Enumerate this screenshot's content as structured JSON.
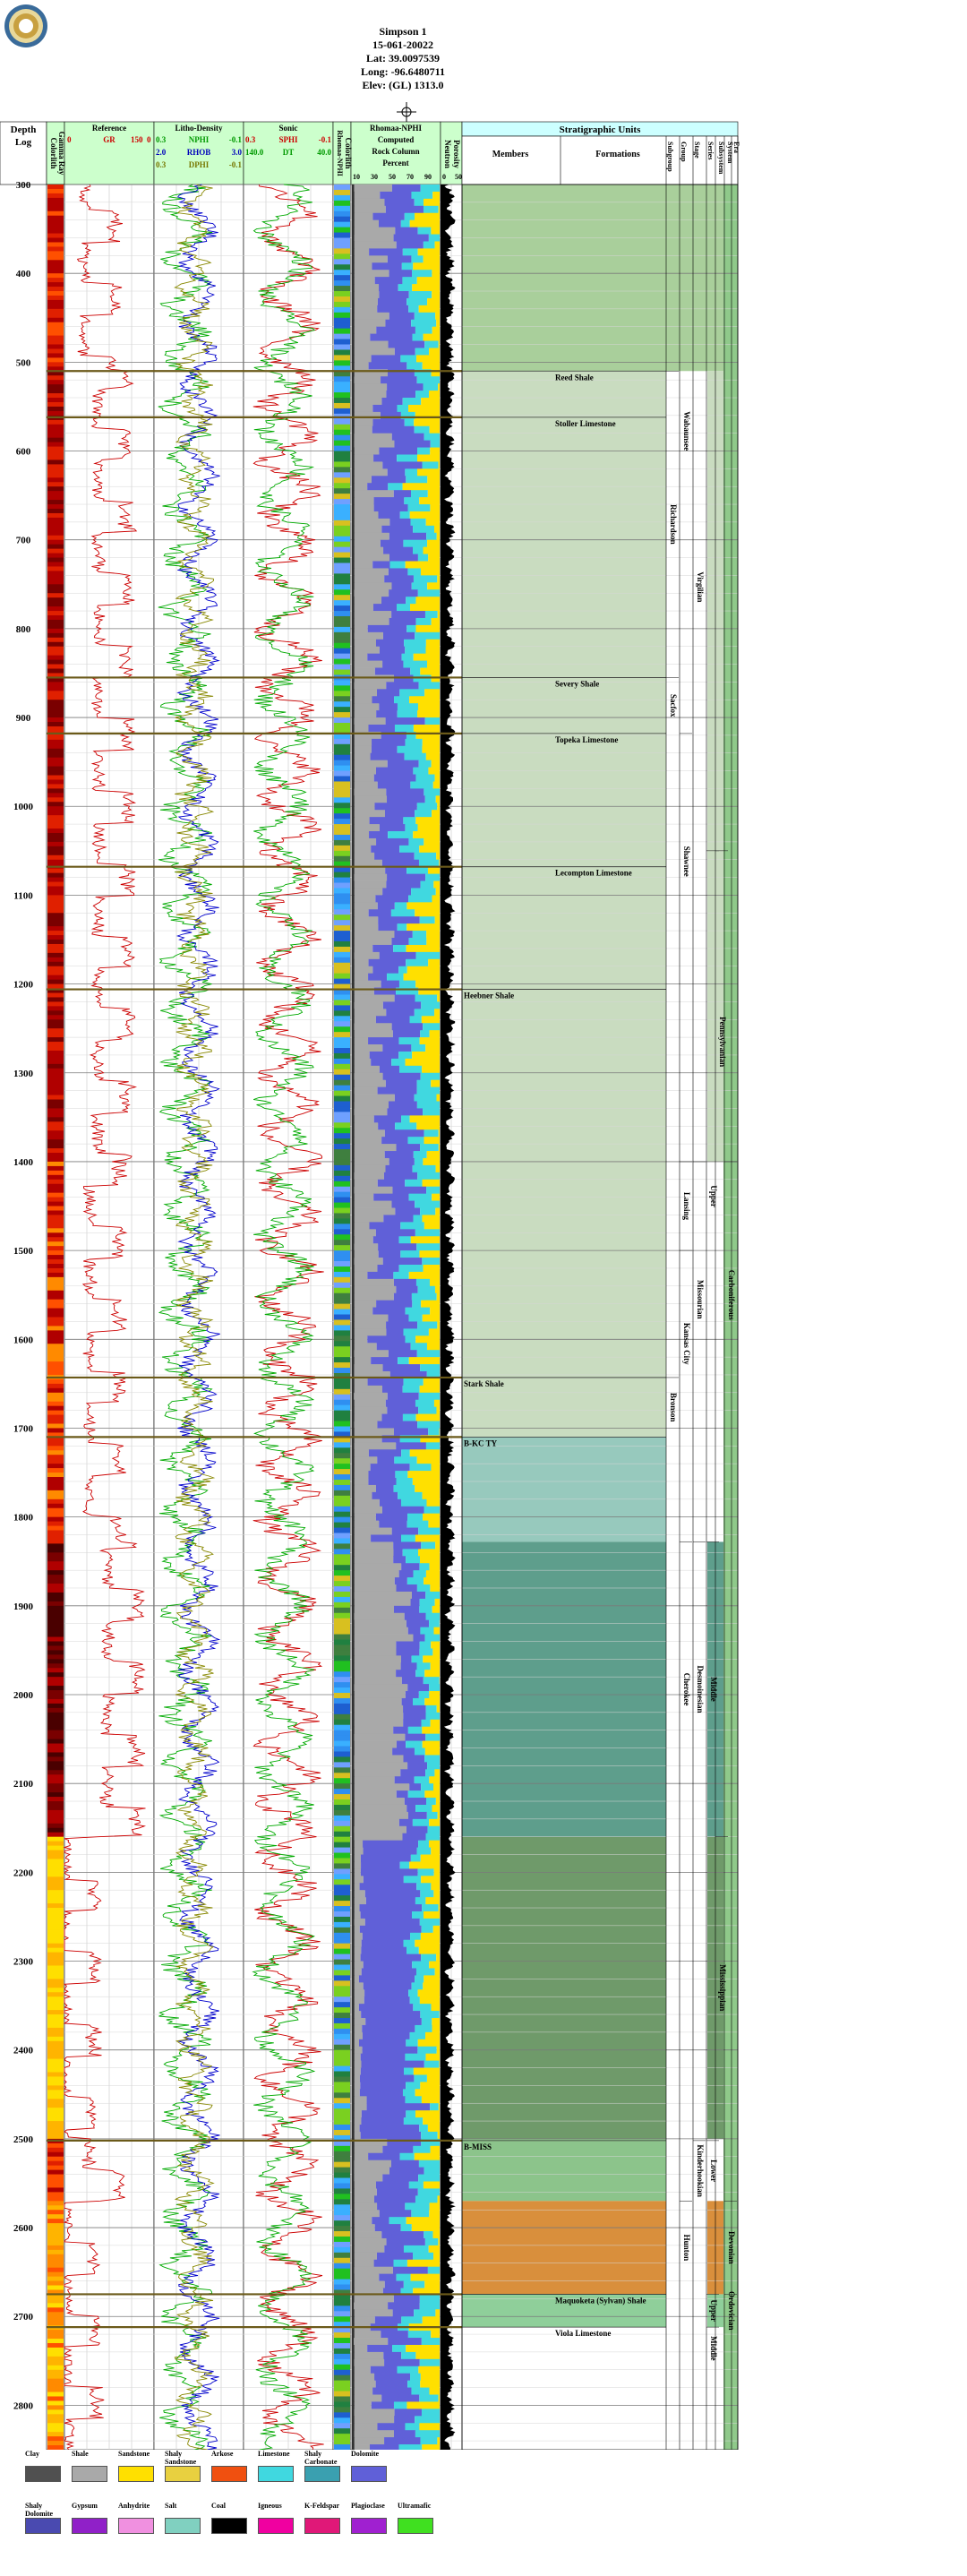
{
  "well": {
    "name": "Simpson 1",
    "api": "15-061-20022",
    "lat": "Lat: 39.0097539",
    "long": "Long: -96.6480711",
    "elev": "Elev: (GL) 1313.0"
  },
  "logo_icon": "state-seal-logo",
  "compass_icon": "north-compass-icon",
  "headers": {
    "depth": "Depth",
    "log": "Log",
    "gamma_ray": "Gamma Ray",
    "gamma_ray2": "Colorlith",
    "reference": "Reference",
    "gr_curve": "GR",
    "gr_min": "0",
    "gr_max": "150",
    "gr_end": "0",
    "litho_density": "Litho-Density",
    "nphi": "NPHI",
    "rhob": "RHOB",
    "dphi": "DPHI",
    "nphi_min": "0.3",
    "nphi_max": "-0.1",
    "rhob_min": "2.0",
    "rhob_max": "3.0",
    "dphi_min": "0.3",
    "dphi_max": "-0.1",
    "sonic": "Sonic",
    "sphi": "SPHI",
    "dt": "DT",
    "sphi_min": "0.3",
    "sphi_max": "-0.1",
    "dt_min": "140.0",
    "dt_max": "40.0",
    "colorlith": "Colorlith",
    "colorlith2": "Rhomaa-NPHI",
    "rhomaa": "Rhomaa-NPHI",
    "computed": "Computed",
    "rock_column": "Rock Column",
    "percent": "Percent",
    "pct_ticks": [
      "10",
      "30",
      "50",
      "70",
      "90"
    ],
    "porosity": "Porosity",
    "neutron": "Neutron",
    "por_ticks": [
      "0",
      "50"
    ],
    "strat_units": "Stratigraphic Units",
    "members": "Members",
    "formations": "Formations",
    "subgroup": "Subgroup",
    "group": "Group",
    "stage": "Stage",
    "series": "Series",
    "subsystem": "Subsystem",
    "system": "System",
    "era": "Era"
  },
  "depth_ticks": [
    "300",
    "400",
    "500",
    "600",
    "700",
    "800",
    "900",
    "1000",
    "1100",
    "1200",
    "1300",
    "1400",
    "1500",
    "1600",
    "1700",
    "1800",
    "1900",
    "2000",
    "2100",
    "2200",
    "2300",
    "2400",
    "2500",
    "2600",
    "2700",
    "2800"
  ],
  "chart_data": {
    "type": "well-log",
    "depth_range": [
      300,
      2850
    ],
    "depth_ticks": [
      300,
      400,
      500,
      600,
      700,
      800,
      900,
      1000,
      1100,
      1200,
      1300,
      1400,
      1500,
      1600,
      1700,
      1800,
      1900,
      2000,
      2100,
      2200,
      2300,
      2400,
      2500,
      2600,
      2700,
      2800
    ],
    "tracks": [
      {
        "name": "Reference",
        "curves": [
          {
            "name": "GR",
            "range": [
              0,
              150
            ],
            "color": "#cc0000"
          }
        ]
      },
      {
        "name": "Litho-Density",
        "curves": [
          {
            "name": "NPHI",
            "range": [
              0.3,
              -0.1
            ],
            "color": "#00aa00"
          },
          {
            "name": "RHOB",
            "range": [
              2.0,
              3.0
            ],
            "color": "#0000cc"
          },
          {
            "name": "DPHI",
            "range": [
              0.3,
              -0.1
            ],
            "color": "#888800"
          }
        ]
      },
      {
        "name": "Sonic",
        "curves": [
          {
            "name": "SPHI",
            "range": [
              0.3,
              -0.1
            ],
            "color": "#cc0000"
          },
          {
            "name": "DT",
            "range": [
              140.0,
              40.0
            ],
            "color": "#00aa00"
          }
        ]
      },
      {
        "name": "Porosity Neutron",
        "range": [
          0,
          50
        ]
      }
    ],
    "formation_tops": [
      {
        "label": "Reed Shale",
        "depth": 510
      },
      {
        "label": "Stoller Limestone",
        "depth": 562
      },
      {
        "label": "Severy Shale",
        "depth": 855
      },
      {
        "label": "Topeka Limestone",
        "depth": 918
      },
      {
        "label": "Lecompton Limestone",
        "depth": 1068
      },
      {
        "label": "Heebner Shale",
        "depth": 1206
      },
      {
        "label": "Stark Shale",
        "depth": 1643
      },
      {
        "label": "B-KC TY",
        "depth": 1710
      },
      {
        "label": "B-MISS",
        "depth": 2502
      },
      {
        "label": "Maquoketa (Sylvan) Shale",
        "depth": 2675
      },
      {
        "label": "Viola Limestone",
        "depth": 2712
      }
    ],
    "units": [
      {
        "label": "Richardson",
        "column": "subgroup",
        "top": 510,
        "bottom": 855
      },
      {
        "label": "Wabaunsee",
        "column": "group",
        "top": 300,
        "bottom": 855
      },
      {
        "label": "Sacfox",
        "column": "subgroup",
        "top": 855,
        "bottom": 918
      },
      {
        "label": "Shawnee",
        "column": "group",
        "top": 918,
        "bottom": 1206
      },
      {
        "label": "Virgilian",
        "column": "stage",
        "top": 300,
        "bottom": 1206
      },
      {
        "label": "Lansing",
        "column": "group",
        "top": 1400,
        "bottom": 1500
      },
      {
        "label": "Kansas City",
        "column": "group",
        "top": 1500,
        "bottom": 1710
      },
      {
        "label": "Bronson",
        "column": "subgroup",
        "top": 1643,
        "bottom": 1710
      },
      {
        "label": "Missourian",
        "column": "stage",
        "top": 1400,
        "bottom": 1710
      },
      {
        "label": "Cherokee",
        "column": "group",
        "top": 1828,
        "bottom": 2160
      },
      {
        "label": "Desmoinesian",
        "column": "stage",
        "top": 1828,
        "bottom": 2160
      },
      {
        "label": "Middle",
        "column": "series",
        "top": 1828,
        "bottom": 2160
      },
      {
        "label": "Upper",
        "column": "series",
        "top": 1050,
        "bottom": 1828
      },
      {
        "label": "Pennsylvanian",
        "column": "subsystem",
        "top": 1050,
        "bottom": 1480
      },
      {
        "label": "Carboniferous",
        "column": "system",
        "top": 1400,
        "bottom": 1700
      },
      {
        "label": "Mississippian",
        "column": "subsystem",
        "top": 2160,
        "bottom": 2500
      },
      {
        "label": "Kinderhookian",
        "column": "stage",
        "top": 2502,
        "bottom": 2570
      },
      {
        "label": "Lower",
        "column": "series",
        "top": 2502,
        "bottom": 2570
      },
      {
        "label": "Hunton",
        "column": "group",
        "top": 2570,
        "bottom": 2675
      },
      {
        "label": "Devonian",
        "column": "system",
        "top": 2570,
        "bottom": 2675
      },
      {
        "label": "Upper",
        "column": "series",
        "top": 2675,
        "bottom": 2712
      },
      {
        "label": "Ordovician",
        "column": "system",
        "top": 2675,
        "bottom": 2712
      },
      {
        "label": "Middle",
        "column": "series",
        "top": 2712,
        "bottom": 2760
      }
    ]
  },
  "legend": [
    {
      "label": "Clay",
      "color": "#505050"
    },
    {
      "label": "Shale",
      "color": "#a9a9a9"
    },
    {
      "label": "Sandstone",
      "color": "#ffe000"
    },
    {
      "label": "Shaly Sandstone",
      "color": "#e8d040"
    },
    {
      "label": "Arkose",
      "color": "#f05010"
    },
    {
      "label": "Limestone",
      "color": "#40d8e0"
    },
    {
      "label": "Shaly Carbonate",
      "color": "#3aa0b0"
    },
    {
      "label": "Dolomite",
      "color": "#6060d8"
    },
    {
      "label": "Shaly Dolomite",
      "color": "#4a4ab0"
    },
    {
      "label": "Gypsum",
      "color": "#9020c8"
    },
    {
      "label": "Anhydrite",
      "color": "#f090e0"
    },
    {
      "label": "Salt",
      "color": "#80d0c0"
    },
    {
      "label": "Coal",
      "color": "#000000"
    },
    {
      "label": "Igneous",
      "color": "#f000a0"
    },
    {
      "label": "K-Feldspar",
      "color": "#e01878"
    },
    {
      "label": "Plagioclase",
      "color": "#a020d0"
    },
    {
      "label": "Ultramafic",
      "color": "#40e020"
    }
  ]
}
